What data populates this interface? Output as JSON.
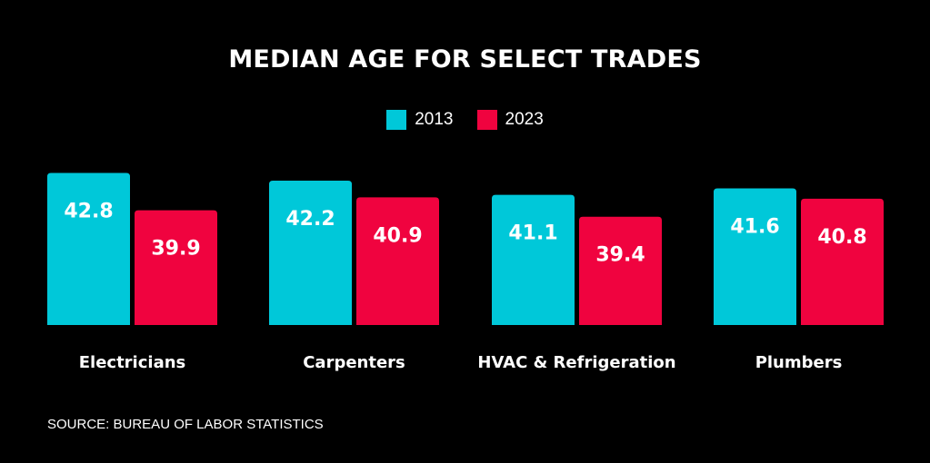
{
  "colors": {
    "background": "#000000",
    "series_2013": "#00c8d9",
    "series_2023": "#f0033f",
    "text": "#ffffff"
  },
  "source": "SOURCE: BUREAU OF LABOR STATISTICS",
  "chart_data": {
    "type": "bar",
    "title": "MEDIAN AGE FOR SELECT TRADES",
    "categories": [
      "Electricians",
      "Carpenters",
      "HVAC & Refrigeration",
      "Plumbers"
    ],
    "series": [
      {
        "name": "2013",
        "values": [
          42.8,
          42.2,
          41.1,
          41.6
        ]
      },
      {
        "name": "2023",
        "values": [
          39.9,
          40.9,
          39.4,
          40.8
        ]
      }
    ],
    "legend": "top-center",
    "grid": false,
    "axes_visible": false,
    "data_labels": [
      "42.8",
      "39.9",
      "42.2",
      "40.9",
      "41.1",
      "39.4",
      "41.6",
      "40.8"
    ]
  }
}
